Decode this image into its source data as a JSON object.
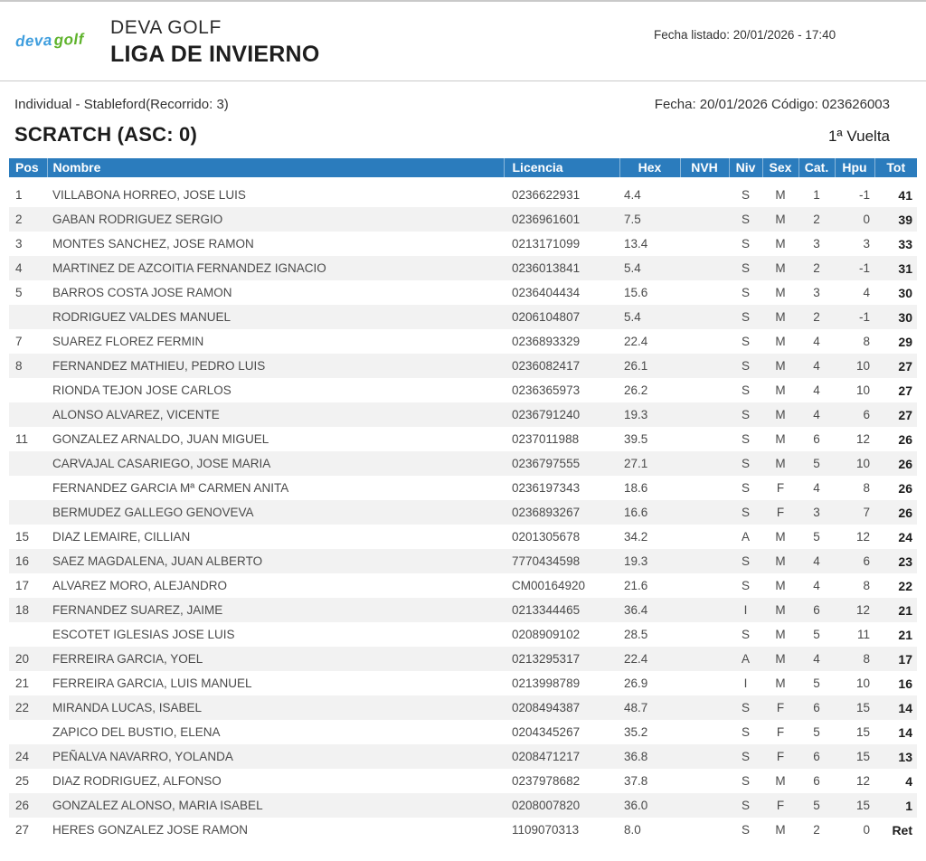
{
  "header": {
    "logo_part1": "deva",
    "logo_part2": "golf",
    "club_name": "DEVA GOLF",
    "competition_name": "LIGA DE INVIERNO",
    "listing_date": "Fecha listado: 20/01/2026 - 17:40"
  },
  "subheader": {
    "format": "Individual - Stableford(Recorrido: 3)",
    "date_code": "Fecha: 20/01/2026 Código: 023626003",
    "category_title": "SCRATCH (ASC: 0)",
    "round": "1ª Vuelta"
  },
  "colors": {
    "table_header_blue": "#2b7cbd",
    "row_stripe_gray": "#f2f2f2",
    "logo_blue": "#3f9ede",
    "logo_green": "#5fb32c"
  },
  "table": {
    "columns": [
      "Pos",
      "Nombre",
      "Licencia",
      "Hex",
      "NVH",
      "Niv",
      "Sex",
      "Cat.",
      "Hpu",
      "Tot"
    ],
    "rows": [
      {
        "pos": "1",
        "nombre": "VILLABONA HORREO, JOSE LUIS",
        "licencia": "0236622931",
        "hex": "4.4",
        "nvh": "",
        "niv": "S",
        "sex": "M",
        "cat": "1",
        "hpu": "-1",
        "tot": "41"
      },
      {
        "pos": "2",
        "nombre": "GABAN RODRIGUEZ SERGIO",
        "licencia": "0236961601",
        "hex": "7.5",
        "nvh": "",
        "niv": "S",
        "sex": "M",
        "cat": "2",
        "hpu": "0",
        "tot": "39"
      },
      {
        "pos": "3",
        "nombre": "MONTES SANCHEZ, JOSE RAMON",
        "licencia": "0213171099",
        "hex": "13.4",
        "nvh": "",
        "niv": "S",
        "sex": "M",
        "cat": "3",
        "hpu": "3",
        "tot": "33"
      },
      {
        "pos": "4",
        "nombre": "MARTINEZ DE AZCOITIA FERNANDEZ IGNACIO",
        "licencia": "0236013841",
        "hex": "5.4",
        "nvh": "",
        "niv": "S",
        "sex": "M",
        "cat": "2",
        "hpu": "-1",
        "tot": "31"
      },
      {
        "pos": "5",
        "nombre": "BARROS COSTA JOSE RAMON",
        "licencia": "0236404434",
        "hex": "15.6",
        "nvh": "",
        "niv": "S",
        "sex": "M",
        "cat": "3",
        "hpu": "4",
        "tot": "30"
      },
      {
        "pos": "",
        "nombre": "RODRIGUEZ VALDES MANUEL",
        "licencia": "0206104807",
        "hex": "5.4",
        "nvh": "",
        "niv": "S",
        "sex": "M",
        "cat": "2",
        "hpu": "-1",
        "tot": "30"
      },
      {
        "pos": "7",
        "nombre": "SUAREZ FLOREZ FERMIN",
        "licencia": "0236893329",
        "hex": "22.4",
        "nvh": "",
        "niv": "S",
        "sex": "M",
        "cat": "4",
        "hpu": "8",
        "tot": "29"
      },
      {
        "pos": "8",
        "nombre": "FERNANDEZ MATHIEU, PEDRO LUIS",
        "licencia": "0236082417",
        "hex": "26.1",
        "nvh": "",
        "niv": "S",
        "sex": "M",
        "cat": "4",
        "hpu": "10",
        "tot": "27"
      },
      {
        "pos": "",
        "nombre": "RIONDA TEJON JOSE CARLOS",
        "licencia": "0236365973",
        "hex": "26.2",
        "nvh": "",
        "niv": "S",
        "sex": "M",
        "cat": "4",
        "hpu": "10",
        "tot": "27"
      },
      {
        "pos": "",
        "nombre": "ALONSO ALVAREZ, VICENTE",
        "licencia": "0236791240",
        "hex": "19.3",
        "nvh": "",
        "niv": "S",
        "sex": "M",
        "cat": "4",
        "hpu": "6",
        "tot": "27"
      },
      {
        "pos": "11",
        "nombre": "GONZALEZ ARNALDO, JUAN MIGUEL",
        "licencia": "0237011988",
        "hex": "39.5",
        "nvh": "",
        "niv": "S",
        "sex": "M",
        "cat": "6",
        "hpu": "12",
        "tot": "26"
      },
      {
        "pos": "",
        "nombre": "CARVAJAL CASARIEGO, JOSE MARIA",
        "licencia": "0236797555",
        "hex": "27.1",
        "nvh": "",
        "niv": "S",
        "sex": "M",
        "cat": "5",
        "hpu": "10",
        "tot": "26"
      },
      {
        "pos": "",
        "nombre": "FERNANDEZ GARCIA Mª CARMEN ANITA",
        "licencia": "0236197343",
        "hex": "18.6",
        "nvh": "",
        "niv": "S",
        "sex": "F",
        "cat": "4",
        "hpu": "8",
        "tot": "26"
      },
      {
        "pos": "",
        "nombre": "BERMUDEZ GALLEGO GENOVEVA",
        "licencia": "0236893267",
        "hex": "16.6",
        "nvh": "",
        "niv": "S",
        "sex": "F",
        "cat": "3",
        "hpu": "7",
        "tot": "26"
      },
      {
        "pos": "15",
        "nombre": "DIAZ LEMAIRE, CILLIAN",
        "licencia": "0201305678",
        "hex": "34.2",
        "nvh": "",
        "niv": "A",
        "sex": "M",
        "cat": "5",
        "hpu": "12",
        "tot": "24"
      },
      {
        "pos": "16",
        "nombre": "SAEZ MAGDALENA, JUAN ALBERTO",
        "licencia": "7770434598",
        "hex": "19.3",
        "nvh": "",
        "niv": "S",
        "sex": "M",
        "cat": "4",
        "hpu": "6",
        "tot": "23"
      },
      {
        "pos": "17",
        "nombre": "ALVAREZ MORO, ALEJANDRO",
        "licencia": "CM00164920",
        "hex": "21.6",
        "nvh": "",
        "niv": "S",
        "sex": "M",
        "cat": "4",
        "hpu": "8",
        "tot": "22"
      },
      {
        "pos": "18",
        "nombre": "FERNANDEZ SUAREZ, JAIME",
        "licencia": "0213344465",
        "hex": "36.4",
        "nvh": "",
        "niv": "I",
        "sex": "M",
        "cat": "6",
        "hpu": "12",
        "tot": "21"
      },
      {
        "pos": "",
        "nombre": "ESCOTET IGLESIAS JOSE LUIS",
        "licencia": "0208909102",
        "hex": "28.5",
        "nvh": "",
        "niv": "S",
        "sex": "M",
        "cat": "5",
        "hpu": "11",
        "tot": "21"
      },
      {
        "pos": "20",
        "nombre": "FERREIRA GARCIA, YOEL",
        "licencia": "0213295317",
        "hex": "22.4",
        "nvh": "",
        "niv": "A",
        "sex": "M",
        "cat": "4",
        "hpu": "8",
        "tot": "17"
      },
      {
        "pos": "21",
        "nombre": "FERREIRA GARCIA, LUIS MANUEL",
        "licencia": "0213998789",
        "hex": "26.9",
        "nvh": "",
        "niv": "I",
        "sex": "M",
        "cat": "5",
        "hpu": "10",
        "tot": "16"
      },
      {
        "pos": "22",
        "nombre": "MIRANDA LUCAS, ISABEL",
        "licencia": "0208494387",
        "hex": "48.7",
        "nvh": "",
        "niv": "S",
        "sex": "F",
        "cat": "6",
        "hpu": "15",
        "tot": "14"
      },
      {
        "pos": "",
        "nombre": "ZAPICO DEL BUSTIO, ELENA",
        "licencia": "0204345267",
        "hex": "35.2",
        "nvh": "",
        "niv": "S",
        "sex": "F",
        "cat": "5",
        "hpu": "15",
        "tot": "14"
      },
      {
        "pos": "24",
        "nombre": "PEÑALVA NAVARRO, YOLANDA",
        "licencia": "0208471217",
        "hex": "36.8",
        "nvh": "",
        "niv": "S",
        "sex": "F",
        "cat": "6",
        "hpu": "15",
        "tot": "13"
      },
      {
        "pos": "25",
        "nombre": "DIAZ RODRIGUEZ, ALFONSO",
        "licencia": "0237978682",
        "hex": "37.8",
        "nvh": "",
        "niv": "S",
        "sex": "M",
        "cat": "6",
        "hpu": "12",
        "tot": "4"
      },
      {
        "pos": "26",
        "nombre": "GONZALEZ ALONSO, MARIA ISABEL",
        "licencia": "0208007820",
        "hex": "36.0",
        "nvh": "",
        "niv": "S",
        "sex": "F",
        "cat": "5",
        "hpu": "15",
        "tot": "1"
      },
      {
        "pos": "27",
        "nombre": "HERES GONZALEZ JOSE RAMON",
        "licencia": "1109070313",
        "hex": "8.0",
        "nvh": "",
        "niv": "S",
        "sex": "M",
        "cat": "2",
        "hpu": "0",
        "tot": "Ret"
      }
    ]
  }
}
